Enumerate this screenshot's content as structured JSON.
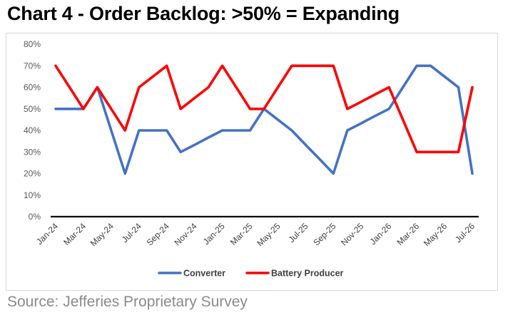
{
  "header": {
    "title": "Chart 4 - Order Backlog: >50% = Expanding"
  },
  "footer": {
    "source": "Source: Jefferies Proprietary Survey"
  },
  "chart_data": {
    "type": "line",
    "title": "",
    "xlabel": "",
    "ylabel": "",
    "ylim": [
      0,
      80
    ],
    "y_ticks": [
      "0%",
      "10%",
      "20%",
      "30%",
      "40%",
      "50%",
      "60%",
      "70%",
      "80%"
    ],
    "grid": false,
    "legend_position": "bottom",
    "x_tick_labels": [
      "Jan-24",
      "Mar-24",
      "May-24",
      "Jul-24",
      "Sep-24",
      "Nov-24",
      "Jan-25",
      "Mar-25",
      "May-25",
      "Jul-25",
      "Sep-25",
      "Nov-25",
      "Jan-26",
      "Mar-26",
      "May-26",
      "Jul-26"
    ],
    "x": [
      "Jan-24",
      "Feb-24",
      "Mar-24",
      "Apr-24",
      "May-24",
      "Jun-24",
      "Jul-24",
      "Aug-24",
      "Sep-24",
      "Oct-24",
      "Nov-24",
      "Dec-24",
      "Jan-25",
      "Feb-25",
      "Mar-25",
      "Apr-25",
      "May-25",
      "Jun-25",
      "Jul-25",
      "Aug-25",
      "Sep-25",
      "Oct-25",
      "Nov-25",
      "Dec-25",
      "Jan-26",
      "Feb-26",
      "Mar-26",
      "Apr-26",
      "May-26",
      "Jun-26",
      "Jul-26"
    ],
    "series": [
      {
        "name": "Converter",
        "color": "#4472c4",
        "values": [
          50,
          50,
          50,
          60,
          40,
          20,
          40,
          40,
          40,
          30,
          33.3,
          36.7,
          40,
          40,
          40,
          50,
          45,
          40,
          33.3,
          26.7,
          20,
          40,
          43.3,
          46.7,
          50,
          60,
          70,
          70,
          65,
          60,
          20
        ]
      },
      {
        "name": "Battery Producer",
        "color": "#ff0000",
        "values": [
          70,
          60,
          50,
          60,
          50,
          40,
          60,
          65,
          70,
          50,
          55,
          60,
          70,
          60,
          50,
          50,
          60,
          70,
          70,
          70,
          70,
          50,
          53.3,
          56.7,
          60,
          45,
          30,
          30,
          30,
          30,
          60
        ]
      }
    ]
  }
}
